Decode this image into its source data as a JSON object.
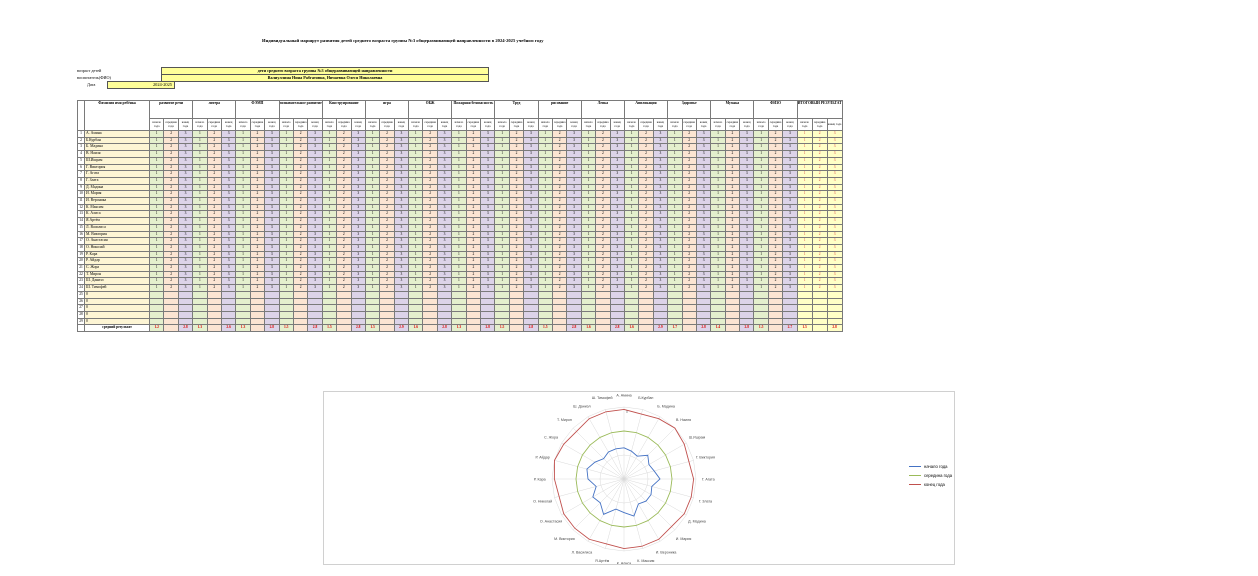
{
  "title": "Индивидуальный маршрут развития детей   среднего возраста  группы №3 общеразвивающей направленности в 2024-2025 учебном году",
  "info": {
    "age_label": "возраст детей",
    "age_value": "дети среднего возраста группы №3 общеразвивающей направленности",
    "teacher_label": "воспитатель(ФИО)",
    "teacher_value": "Валиуллина Нина Рабгатовна, Ничаевна Олеся Николаевна",
    "date_label": "Дата",
    "date_value": "2024-2025"
  },
  "table": {
    "fio_header": "Фамилия имя ребёнка",
    "sections": [
      "развитие речи",
      "литера",
      "ФЭМП",
      "познавательное развитие",
      "Конструирование",
      "игра",
      "ОБЖ",
      "Пожарная безопасность",
      "Труд",
      "рисование",
      "Лепка",
      "Аппликация",
      "Здоровье",
      "Музыка",
      "ФИЗО",
      "ИТОГОВЫЙ РЕЗУЛЬТАТ"
    ],
    "sub_headers": [
      "начало года",
      "середина года",
      "конец года"
    ],
    "children": [
      "А. Амина",
      "Б.Курбан",
      "Б. Мадина",
      "В. Наиля",
      "Ш.Ишрам",
      "Г. Виктория",
      "Г. Агата",
      "Г. Злата",
      "Д. Мадина",
      "И. Мария",
      "И. Вероника",
      "К. Максим",
      "К. Алиса",
      "Я.Артём",
      "Л. Василиса",
      "М. Виктория",
      "О. Анастасия",
      "О. Николай",
      "Р. Кара",
      "Р. Айдар",
      "С. Жора",
      "Т. Мирон",
      "Ш. Даниэл",
      "Ш. Тимофей",
      "0",
      "0",
      "0",
      "0",
      "0"
    ],
    "values_pattern": [
      "1",
      "2",
      "3"
    ],
    "result_pattern": [
      "1",
      "2",
      "3"
    ],
    "total_label": "средний результат",
    "totals": [
      [
        "1.2",
        "",
        "2.8"
      ],
      [
        "1.3",
        "",
        "2.6"
      ],
      [
        "1.3",
        "",
        "2.8"
      ],
      [
        "1.5",
        "",
        "2.8"
      ],
      [
        "1.5",
        "",
        "2.8"
      ],
      [
        "1.5",
        "",
        "2.9"
      ],
      [
        "1.6",
        "",
        "2.8"
      ],
      [
        "1.3",
        "",
        "2.8"
      ],
      [
        "1.5",
        "",
        "2.8"
      ],
      [
        "1.5",
        "",
        "2.8"
      ],
      [
        "1.6",
        "",
        "2.8"
      ],
      [
        "1.6",
        "",
        "2.9"
      ],
      [
        "1.7",
        "",
        "2.8"
      ],
      [
        "1.4",
        "",
        "2.8"
      ],
      [
        "1.5",
        "",
        "2.7"
      ],
      [
        "1.5",
        "",
        "2.8"
      ]
    ]
  },
  "radar": {
    "labels": [
      "А. Амина",
      "Б.Курбан",
      "Б. Мадина",
      "В. Наиля",
      "Ш.Ишрам",
      "Г. Виктория",
      "Г. Агата",
      "Г. Злата",
      "Д. Мадина",
      "И. Мария",
      "И. Вероника",
      "К. Максим",
      "К. Алиса",
      "Я.Артём",
      "Л. Василиса",
      "М. Виктория",
      "О. Анастасия",
      "О. Николай",
      "Р. Кара",
      "Р. Айдар",
      "С. Жора",
      "Т. Мирон",
      "Ш. Даниэл",
      "Ш. Тимофей"
    ],
    "series": [
      {
        "name": "начало года",
        "color": "#4472c4",
        "values": [
          1.3,
          1.2,
          1.1,
          1.4,
          1.2,
          1.3,
          1.5,
          1.2,
          1.3,
          1.3,
          1.2,
          1.6,
          1.4,
          1.3,
          1.7,
          1.4,
          1.5,
          1.2,
          1.5,
          1.6,
          1.4,
          1.2,
          1.3,
          1.3
        ]
      },
      {
        "name": "середина года",
        "color": "#9bbb59",
        "values": [
          2.0,
          2.0,
          2.0,
          2.0,
          2.0,
          2.0,
          2.0,
          2.0,
          2.0,
          2.0,
          2.0,
          2.0,
          2.0,
          2.0,
          2.0,
          2.0,
          2.0,
          2.0,
          2.0,
          2.0,
          2.0,
          2.0,
          2.0,
          2.0
        ]
      },
      {
        "name": "конец года",
        "color": "#c0504d",
        "values": [
          2.9,
          2.8,
          2.9,
          3.0,
          2.9,
          2.8,
          2.9,
          2.9,
          2.9,
          2.8,
          2.9,
          2.9,
          2.9,
          2.8,
          2.9,
          2.9,
          2.9,
          2.8,
          2.9,
          3.0,
          2.9,
          2.8,
          2.9,
          2.9
        ]
      }
    ],
    "scale_max": 3,
    "center_label": "0"
  }
}
